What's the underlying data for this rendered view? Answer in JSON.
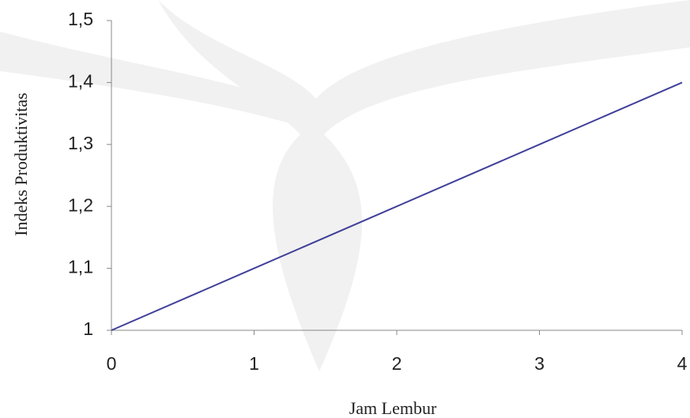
{
  "chart_data": {
    "type": "line",
    "x_label": "Jam Lembur",
    "y_label": "Indeks Produktivitas",
    "x": [
      0,
      1,
      2,
      3,
      4
    ],
    "series": [
      {
        "color": "#40409a",
        "values": [
          1,
          1.1,
          1.2,
          1.3,
          1.4
        ]
      }
    ],
    "xlim": [
      0,
      4
    ],
    "xticks": [
      0,
      1,
      2,
      3,
      4
    ],
    "ylim": [
      1,
      1.5
    ],
    "yticks": [
      1,
      {
        "value": 1.1,
        "label": "1,1"
      },
      {
        "value": 1.2,
        "label": "1,2"
      },
      {
        "value": 1.3,
        "label": "1,3"
      },
      {
        "value": 1.4,
        "label": "1,4"
      },
      {
        "value": 1.5,
        "label": "1,5"
      }
    ]
  }
}
